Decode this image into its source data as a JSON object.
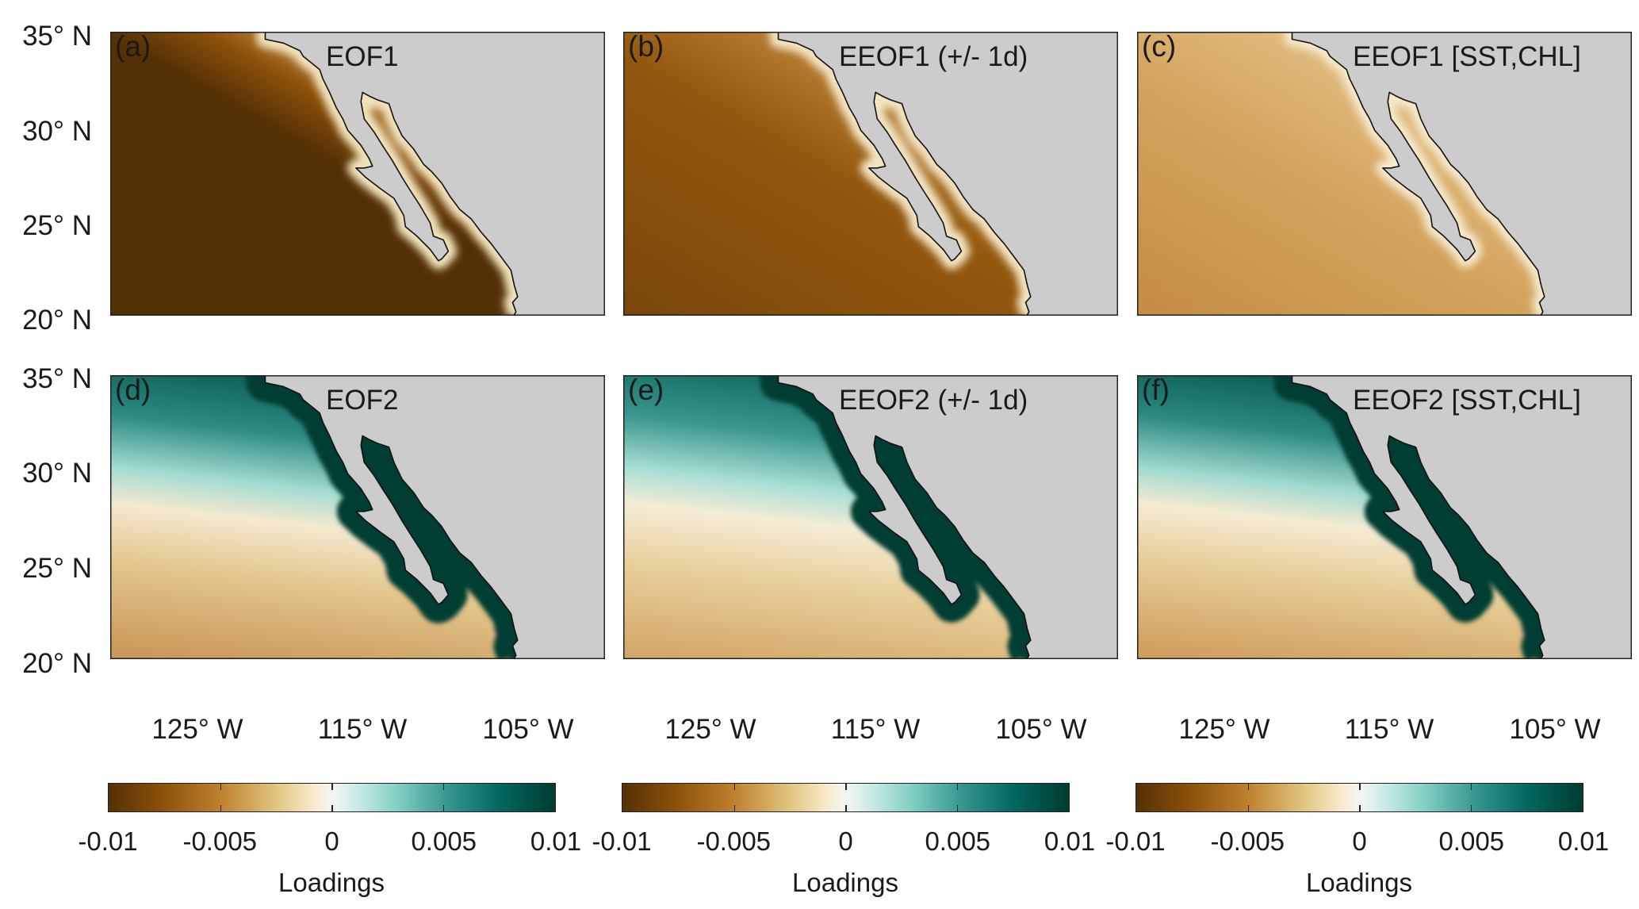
{
  "figure": {
    "panels": [
      {
        "label": "(a)",
        "title": "EOF1",
        "mode": "EOF1"
      },
      {
        "label": "(b)",
        "title": "EEOF1 (+/- 1d)",
        "mode": "EEOF1"
      },
      {
        "label": "(c)",
        "title": "EEOF1 [SST,CHL]",
        "mode": "EEOF1"
      },
      {
        "label": "(d)",
        "title": "EOF2",
        "mode": "EOF2"
      },
      {
        "label": "(e)",
        "title": "EEOF2 (+/- 1d)",
        "mode": "EEOF2"
      },
      {
        "label": "(f)",
        "title": "EEOF2 [SST,CHL]",
        "mode": "EEOF2"
      }
    ],
    "extent": {
      "lon": [
        -130,
        -100
      ],
      "lat": [
        20,
        35
      ]
    },
    "y_ticks": [
      "35° N",
      "30° N",
      "25° N",
      "20° N"
    ],
    "x_ticks": [
      "125° W",
      "115° W",
      "105° W"
    ],
    "land_color": "#cccccc",
    "colorbar": {
      "label": "Loadings",
      "ticks": [
        "-0.01",
        "-0.005",
        "0",
        "0.005",
        "0.01"
      ],
      "range": [
        -0.01,
        0.01
      ],
      "colormap": [
        "#543005",
        "#8c510a",
        "#bf812d",
        "#dfc27d",
        "#f6e8c3",
        "#f5f5f5",
        "#c7eae5",
        "#80cdc1",
        "#35978f",
        "#01665e",
        "#003c30"
      ]
    }
  }
}
